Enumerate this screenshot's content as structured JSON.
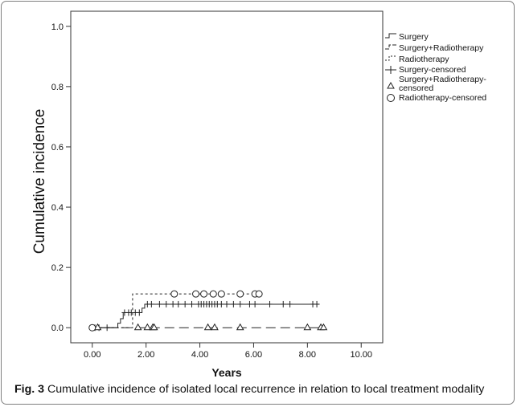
{
  "figure": {
    "label": "Fig. 3",
    "caption": "Cumulative incidence of isolated local recurrence in relation to local treatment modality"
  },
  "chart_data": {
    "type": "line",
    "subtype": "cumulative-incidence-step",
    "xlabel": "Years",
    "ylabel": "Cumulative incidence",
    "xlim": [
      -0.8,
      10.8
    ],
    "ylim": [
      -0.05,
      1.05
    ],
    "x_ticks": [
      "0.00",
      "2.00",
      "4.00",
      "6.00",
      "8.00",
      "10.00"
    ],
    "x_tick_values": [
      0,
      2,
      4,
      6,
      8,
      10
    ],
    "y_ticks": [
      "0.0",
      "0.2",
      "0.4",
      "0.6",
      "0.8",
      "1.0"
    ],
    "y_tick_values": [
      0,
      0.2,
      0.4,
      0.6,
      0.8,
      1.0
    ],
    "grid": false,
    "legend_position": "right",
    "legend": [
      {
        "label": "Surgery",
        "style": "solid-step"
      },
      {
        "label": "Surgery+Radiotherapy",
        "style": "dashed-step"
      },
      {
        "label": "Radiotherapy",
        "style": "dotted-step"
      },
      {
        "label": "Surgery-censored",
        "style": "plus-marker"
      },
      {
        "label": "Surgery+Radiotherapy-censored",
        "style": "triangle-marker"
      },
      {
        "label": "Radiotherapy-censored",
        "style": "circle-marker"
      }
    ],
    "series": [
      {
        "name": "Surgery",
        "style": "solid",
        "steps": [
          [
            0,
            0
          ],
          [
            0.95,
            0.015
          ],
          [
            1.05,
            0.03
          ],
          [
            1.15,
            0.05
          ],
          [
            1.55,
            0.05
          ],
          [
            1.85,
            0.065
          ],
          [
            1.95,
            0.078
          ],
          [
            8.45,
            0.078
          ]
        ],
        "censored": [
          0.1,
          0.25,
          0.55,
          1.2,
          1.35,
          1.45,
          1.6,
          1.75,
          2.05,
          2.2,
          2.5,
          2.75,
          3.0,
          3.2,
          3.45,
          3.7,
          3.95,
          4.05,
          4.15,
          4.25,
          4.35,
          4.45,
          4.55,
          4.65,
          4.8,
          5.0,
          5.25,
          5.5,
          5.85,
          6.05,
          6.6,
          7.1,
          7.35,
          8.2,
          8.35
        ]
      },
      {
        "name": "Surgery+Radiotherapy",
        "style": "dashed",
        "steps": [
          [
            0,
            0
          ],
          [
            8.6,
            0
          ]
        ],
        "censored": [
          0.2,
          1.7,
          2.05,
          2.25,
          2.3,
          4.3,
          4.55,
          5.5,
          8.0,
          8.5,
          8.6
        ]
      },
      {
        "name": "Radiotherapy",
        "style": "dotted",
        "steps": [
          [
            0,
            0
          ],
          [
            1.5,
            0
          ],
          [
            1.5,
            0.112
          ],
          [
            6.25,
            0.112
          ]
        ],
        "censored_zero": [
          0.0
        ],
        "censored": [
          3.05,
          3.85,
          4.15,
          4.5,
          4.8,
          5.5,
          6.05,
          6.2
        ]
      }
    ]
  }
}
